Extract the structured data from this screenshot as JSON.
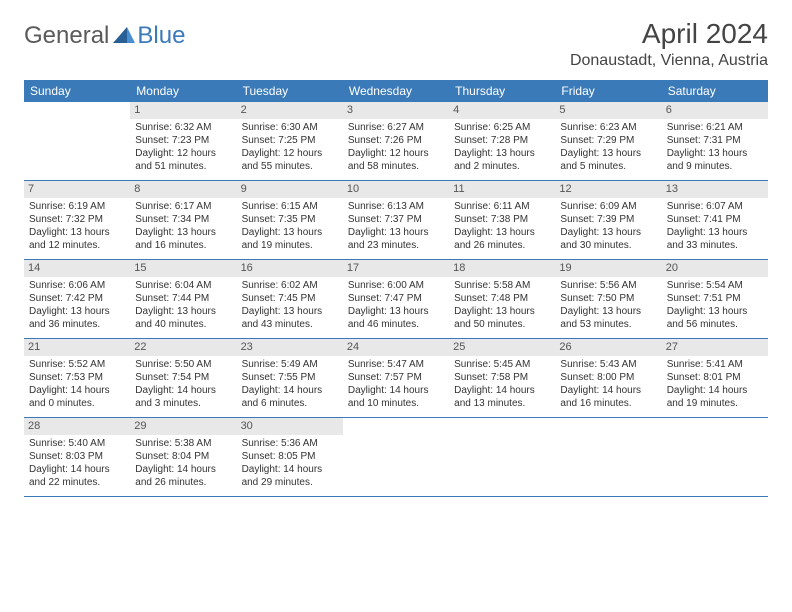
{
  "logo": {
    "general": "General",
    "blue": "Blue"
  },
  "title": "April 2024",
  "location": "Donaustadt, Vienna, Austria",
  "colors": {
    "header_bg": "#3a7ab8",
    "header_text": "#ffffff",
    "daynum_bg": "#e8e8e8",
    "text": "#333333",
    "border": "#3a7ab8"
  },
  "weekdays": [
    "Sunday",
    "Monday",
    "Tuesday",
    "Wednesday",
    "Thursday",
    "Friday",
    "Saturday"
  ],
  "weeks": [
    [
      null,
      {
        "d": "1",
        "sr": "6:32 AM",
        "ss": "7:23 PM",
        "dl": "12 hours and 51 minutes."
      },
      {
        "d": "2",
        "sr": "6:30 AM",
        "ss": "7:25 PM",
        "dl": "12 hours and 55 minutes."
      },
      {
        "d": "3",
        "sr": "6:27 AM",
        "ss": "7:26 PM",
        "dl": "12 hours and 58 minutes."
      },
      {
        "d": "4",
        "sr": "6:25 AM",
        "ss": "7:28 PM",
        "dl": "13 hours and 2 minutes."
      },
      {
        "d": "5",
        "sr": "6:23 AM",
        "ss": "7:29 PM",
        "dl": "13 hours and 5 minutes."
      },
      {
        "d": "6",
        "sr": "6:21 AM",
        "ss": "7:31 PM",
        "dl": "13 hours and 9 minutes."
      }
    ],
    [
      {
        "d": "7",
        "sr": "6:19 AM",
        "ss": "7:32 PM",
        "dl": "13 hours and 12 minutes."
      },
      {
        "d": "8",
        "sr": "6:17 AM",
        "ss": "7:34 PM",
        "dl": "13 hours and 16 minutes."
      },
      {
        "d": "9",
        "sr": "6:15 AM",
        "ss": "7:35 PM",
        "dl": "13 hours and 19 minutes."
      },
      {
        "d": "10",
        "sr": "6:13 AM",
        "ss": "7:37 PM",
        "dl": "13 hours and 23 minutes."
      },
      {
        "d": "11",
        "sr": "6:11 AM",
        "ss": "7:38 PM",
        "dl": "13 hours and 26 minutes."
      },
      {
        "d": "12",
        "sr": "6:09 AM",
        "ss": "7:39 PM",
        "dl": "13 hours and 30 minutes."
      },
      {
        "d": "13",
        "sr": "6:07 AM",
        "ss": "7:41 PM",
        "dl": "13 hours and 33 minutes."
      }
    ],
    [
      {
        "d": "14",
        "sr": "6:06 AM",
        "ss": "7:42 PM",
        "dl": "13 hours and 36 minutes."
      },
      {
        "d": "15",
        "sr": "6:04 AM",
        "ss": "7:44 PM",
        "dl": "13 hours and 40 minutes."
      },
      {
        "d": "16",
        "sr": "6:02 AM",
        "ss": "7:45 PM",
        "dl": "13 hours and 43 minutes."
      },
      {
        "d": "17",
        "sr": "6:00 AM",
        "ss": "7:47 PM",
        "dl": "13 hours and 46 minutes."
      },
      {
        "d": "18",
        "sr": "5:58 AM",
        "ss": "7:48 PM",
        "dl": "13 hours and 50 minutes."
      },
      {
        "d": "19",
        "sr": "5:56 AM",
        "ss": "7:50 PM",
        "dl": "13 hours and 53 minutes."
      },
      {
        "d": "20",
        "sr": "5:54 AM",
        "ss": "7:51 PM",
        "dl": "13 hours and 56 minutes."
      }
    ],
    [
      {
        "d": "21",
        "sr": "5:52 AM",
        "ss": "7:53 PM",
        "dl": "14 hours and 0 minutes."
      },
      {
        "d": "22",
        "sr": "5:50 AM",
        "ss": "7:54 PM",
        "dl": "14 hours and 3 minutes."
      },
      {
        "d": "23",
        "sr": "5:49 AM",
        "ss": "7:55 PM",
        "dl": "14 hours and 6 minutes."
      },
      {
        "d": "24",
        "sr": "5:47 AM",
        "ss": "7:57 PM",
        "dl": "14 hours and 10 minutes."
      },
      {
        "d": "25",
        "sr": "5:45 AM",
        "ss": "7:58 PM",
        "dl": "14 hours and 13 minutes."
      },
      {
        "d": "26",
        "sr": "5:43 AM",
        "ss": "8:00 PM",
        "dl": "14 hours and 16 minutes."
      },
      {
        "d": "27",
        "sr": "5:41 AM",
        "ss": "8:01 PM",
        "dl": "14 hours and 19 minutes."
      }
    ],
    [
      {
        "d": "28",
        "sr": "5:40 AM",
        "ss": "8:03 PM",
        "dl": "14 hours and 22 minutes."
      },
      {
        "d": "29",
        "sr": "5:38 AM",
        "ss": "8:04 PM",
        "dl": "14 hours and 26 minutes."
      },
      {
        "d": "30",
        "sr": "5:36 AM",
        "ss": "8:05 PM",
        "dl": "14 hours and 29 minutes."
      },
      null,
      null,
      null,
      null
    ]
  ],
  "labels": {
    "sunrise": "Sunrise:",
    "sunset": "Sunset:",
    "daylight": "Daylight:"
  }
}
